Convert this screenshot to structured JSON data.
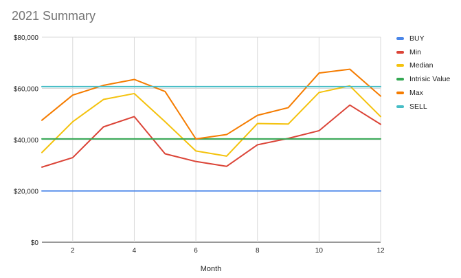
{
  "chart_data": {
    "type": "line",
    "title": "2021 Summary",
    "xlabel": "Month",
    "ylabel": "",
    "x": [
      1,
      2,
      3,
      4,
      5,
      6,
      7,
      8,
      9,
      10,
      11,
      12
    ],
    "xlim": [
      1,
      12
    ],
    "xticks": [
      2,
      4,
      6,
      8,
      10,
      12
    ],
    "ylim": [
      0,
      80000
    ],
    "yticks": [
      0,
      20000,
      40000,
      60000,
      80000
    ],
    "ytick_labels": [
      "$0",
      "$20,000",
      "$40,000",
      "$60,000",
      "$80,000"
    ],
    "grid": true,
    "legend_position": "right",
    "series": [
      {
        "name": "BUY",
        "color": "#4a86e8",
        "values": [
          20000,
          20000,
          20000,
          20000,
          20000,
          20000,
          20000,
          20000,
          20000,
          20000,
          20000,
          20000
        ]
      },
      {
        "name": "Min",
        "color": "#db4437",
        "values": [
          29300,
          33000,
          45000,
          49000,
          34500,
          31500,
          29600,
          38000,
          40500,
          43500,
          53500,
          46000
        ]
      },
      {
        "name": "Median",
        "color": "#f4c20d",
        "values": [
          35000,
          47000,
          55700,
          58000,
          47000,
          35600,
          33600,
          46300,
          46100,
          58400,
          61000,
          49000
        ]
      },
      {
        "name": "Intrisic Value",
        "color": "#34a853",
        "values": [
          40300,
          40300,
          40300,
          40300,
          40300,
          40300,
          40300,
          40300,
          40300,
          40300,
          40300,
          40300
        ]
      },
      {
        "name": "Max",
        "color": "#f57c00",
        "values": [
          47600,
          57400,
          61200,
          63500,
          58800,
          40300,
          42000,
          49500,
          52500,
          66000,
          67500,
          57000
        ]
      },
      {
        "name": "SELL",
        "color": "#46bdc6",
        "values": [
          60700,
          60700,
          60700,
          60700,
          60700,
          60700,
          60700,
          60700,
          60700,
          60700,
          60700,
          60700
        ]
      }
    ]
  }
}
